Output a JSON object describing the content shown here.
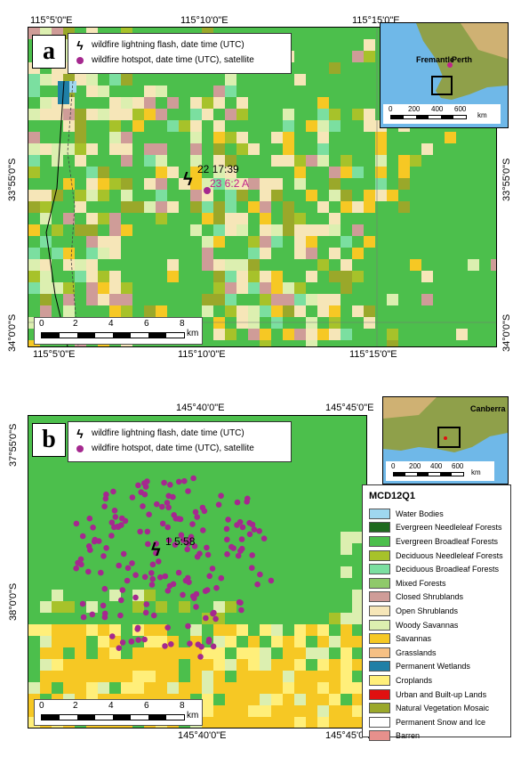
{
  "colors": {
    "water": "#9fd7ef",
    "evergreen_needleleaf": "#1e6a1e",
    "evergreen_broadleaf": "#4cbf4c",
    "deciduous_needleleaf": "#a7c22a",
    "deciduous_broadleaf": "#7bdfa0",
    "mixed": "#8fc96a",
    "closed_shrub": "#cf9c98",
    "open_shrub": "#f6e6b8",
    "woody_savanna": "#dcefb0",
    "savanna": "#f6c824",
    "grassland": "#f6c084",
    "wetland": "#1f7fa6",
    "cropland": "#ffef7a",
    "urban": "#e01010",
    "mosaic": "#9aa82a",
    "snow": "#ffffff",
    "barren": "#e6908c",
    "hotspot": "#a5288f"
  },
  "panel_a": {
    "letter": "a",
    "top_ticks": [
      "115°5'0\"E",
      "115°10'0\"E",
      "115°15'0\"E"
    ],
    "bottom_ticks": [
      "115°5'0\"E",
      "115°10'0\"E",
      "115°15'0\"E"
    ],
    "left_ticks": [
      "33°55'0\"S",
      "34°0'0\"S"
    ],
    "right_ticks": [
      "33°55'0\"S",
      "34°0'0\"S"
    ],
    "legend": {
      "flash_label": "wildfire lightning flash, date time (UTC)",
      "hotspot_label": "wildfire hotspot, date time (UTC), satellite"
    },
    "flash_annotation": "22 17:39",
    "hotspot_annotation": "23 6:2 A",
    "scale": {
      "labels": [
        "0",
        "2",
        "4",
        "6",
        "8"
      ],
      "unit": "km"
    },
    "inset": {
      "places": [
        "Fremantle",
        "Perth"
      ],
      "scale_labels": [
        "0",
        "200",
        "400",
        "600"
      ],
      "scale_unit": "km"
    }
  },
  "panel_b": {
    "letter": "b",
    "top_ticks": [
      "145°40'0\"E",
      "145°45'0\"E"
    ],
    "bottom_ticks": [
      "145°40'0\"E",
      "145°45'0\"E"
    ],
    "left_ticks": [
      "37°55'0\"S",
      "38°0'0\"S"
    ],
    "legend": {
      "flash_label": "wildfire lightning flash, date time (UTC)",
      "hotspot_label": "wildfire hotspot, date time (UTC), satellite"
    },
    "flash_annotation": "1 5:58",
    "scale": {
      "labels": [
        "0",
        "2",
        "4",
        "6",
        "8"
      ],
      "unit": "km"
    },
    "inset": {
      "places": [
        "Canberra"
      ],
      "scale_labels": [
        "0",
        "200",
        "400",
        "600"
      ],
      "scale_unit": "km"
    }
  },
  "landcover_legend": {
    "title": "MCD12Q1",
    "items": [
      {
        "label": "Water Bodies",
        "color": "#9fd7ef"
      },
      {
        "label": "Evergreen Needleleaf Forests",
        "color": "#1e6a1e"
      },
      {
        "label": "Evergreen Broadleaf Forests",
        "color": "#4cbf4c"
      },
      {
        "label": "Deciduous Needleleaf Forests",
        "color": "#a7c22a"
      },
      {
        "label": "Deciduous Broadleaf Forests",
        "color": "#7bdfa0"
      },
      {
        "label": "Mixed Forests",
        "color": "#8fc96a"
      },
      {
        "label": "Closed Shrublands",
        "color": "#cf9c98"
      },
      {
        "label": "Open Shrublands",
        "color": "#f6e6b8"
      },
      {
        "label": "Woody Savannas",
        "color": "#dcefb0"
      },
      {
        "label": "Savannas",
        "color": "#f6c824"
      },
      {
        "label": "Grasslands",
        "color": "#f6c084"
      },
      {
        "label": "Permanent Wetlands",
        "color": "#1f7fa6"
      },
      {
        "label": "Croplands",
        "color": "#ffef7a"
      },
      {
        "label": "Urban and Built-up Lands",
        "color": "#e01010"
      },
      {
        "label": "Natural Vegetation Mosaic",
        "color": "#9aa82a"
      },
      {
        "label": "Permanent Snow and Ice",
        "color": "#ffffff"
      },
      {
        "label": "Barren",
        "color": "#e6908c"
      }
    ]
  }
}
